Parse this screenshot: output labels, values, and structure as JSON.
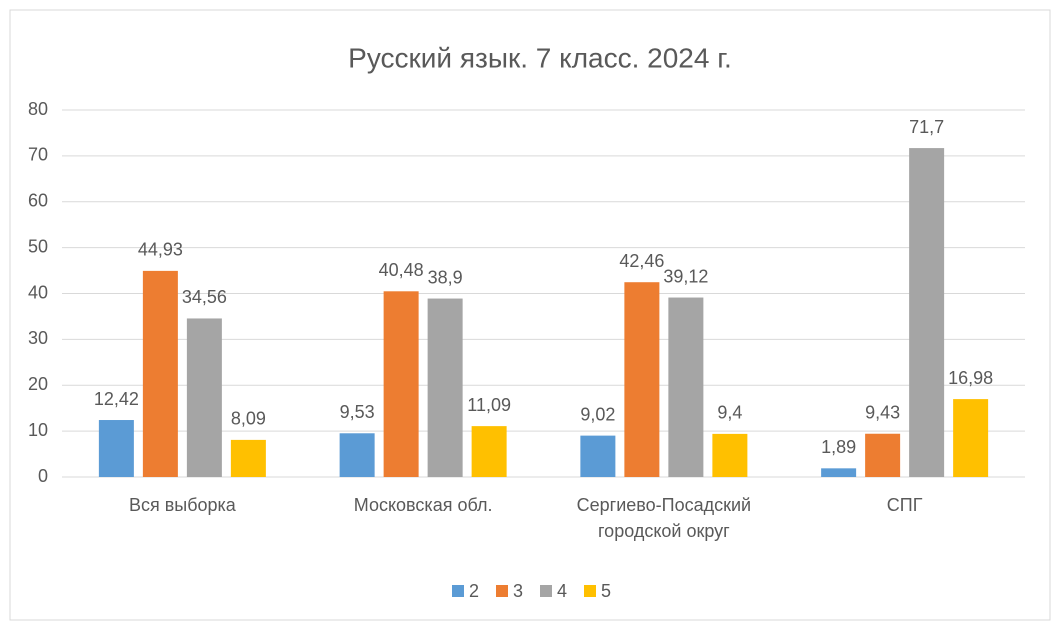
{
  "chart_data": {
    "type": "bar",
    "title": "Русский язык. 7 класс. 2024 г.",
    "categories": [
      "Вся выборка",
      "Московская обл.",
      "Сергиево-Посадский городской округ",
      "СПГ"
    ],
    "series": [
      {
        "name": "2",
        "color": "#5b9bd5",
        "values": [
          12.42,
          9.53,
          9.02,
          1.89
        ],
        "value_labels": [
          "12,42",
          "9,53",
          "9,02",
          "1,89"
        ]
      },
      {
        "name": "3",
        "color": "#ed7d31",
        "values": [
          44.93,
          40.48,
          42.46,
          9.43
        ],
        "value_labels": [
          "44,93",
          "40,48",
          "42,46",
          "9,43"
        ]
      },
      {
        "name": "4",
        "color": "#a5a5a5",
        "values": [
          34.56,
          38.9,
          39.12,
          71.7
        ],
        "value_labels": [
          "34,56",
          "38,9",
          "39,12",
          "71,7"
        ]
      },
      {
        "name": "5",
        "color": "#ffc000",
        "values": [
          8.09,
          11.09,
          9.4,
          16.98
        ],
        "value_labels": [
          "8,09",
          "11,09",
          "9,4",
          "16,98"
        ]
      }
    ],
    "ylim": [
      0,
      80
    ],
    "yticks": [
      0,
      10,
      20,
      30,
      40,
      50,
      60,
      70,
      80
    ],
    "grid": true,
    "legend": "bottom"
  }
}
